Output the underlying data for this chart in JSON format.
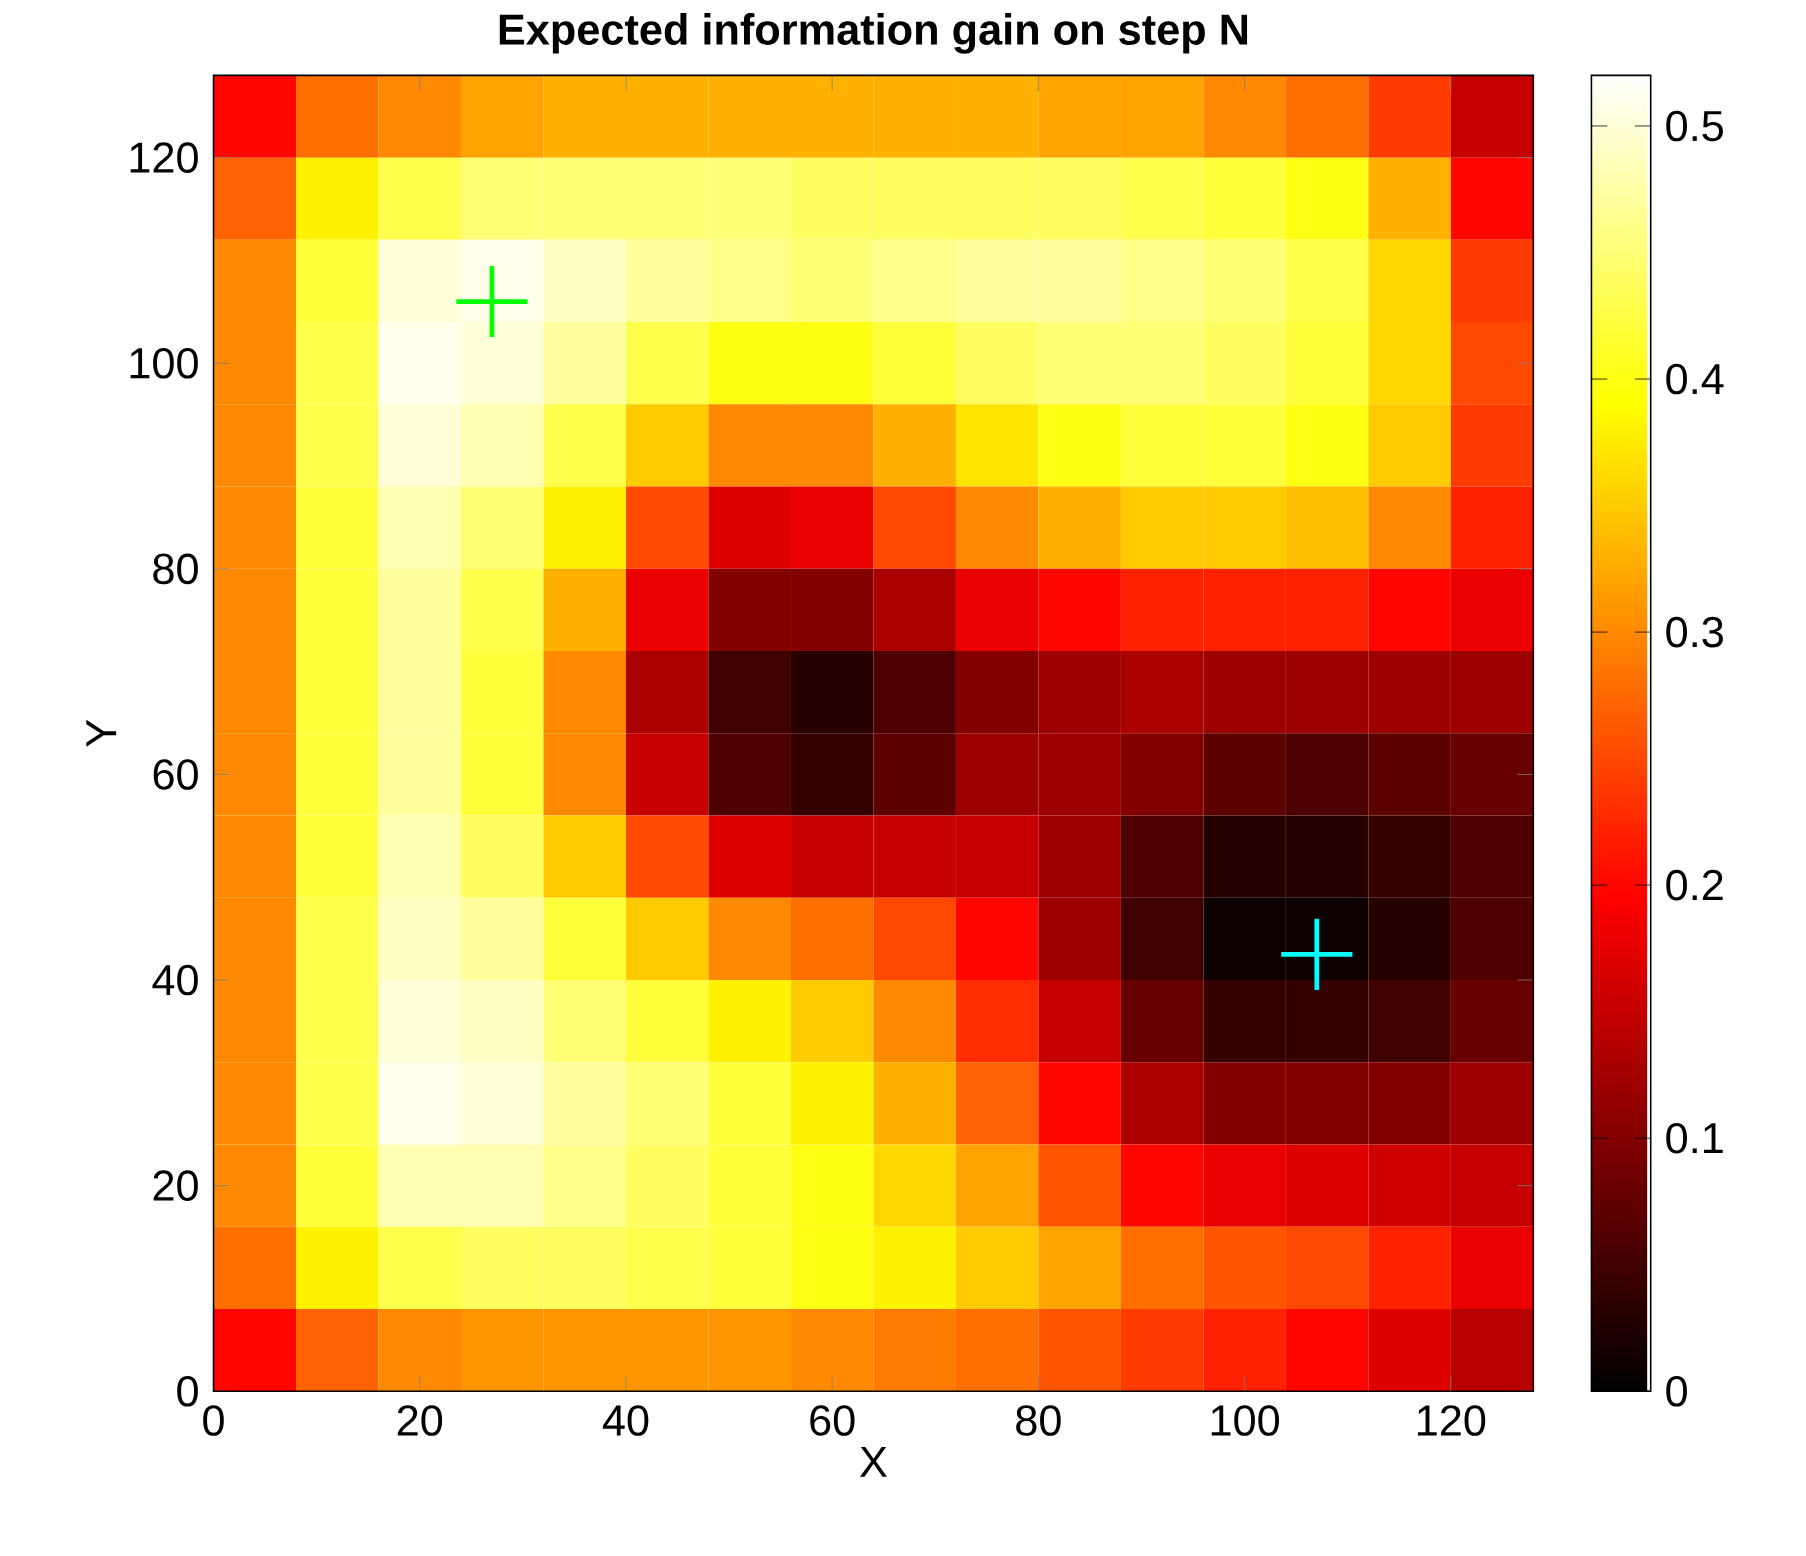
{
  "chart_data": {
    "type": "heatmap",
    "title": "Expected information gain on step N",
    "xlabel": "X",
    "ylabel": "Y",
    "xlim": [
      0,
      128
    ],
    "ylim": [
      0,
      128
    ],
    "xticks": [
      0,
      20,
      40,
      60,
      80,
      100,
      120
    ],
    "yticks": [
      0,
      20,
      40,
      60,
      80,
      100,
      120
    ],
    "clim": [
      0,
      0.52
    ],
    "cticks": [
      0,
      0.1,
      0.2,
      0.3,
      0.4,
      0.5
    ],
    "marker": "cross",
    "cells": [
      [
        0.2,
        0.28,
        0.3,
        0.32,
        0.33,
        0.33,
        0.33,
        0.33,
        0.33,
        0.33,
        0.32,
        0.32,
        0.3,
        0.28,
        0.24,
        0.15
      ],
      [
        0.27,
        0.38,
        0.43,
        0.45,
        0.45,
        0.45,
        0.45,
        0.44,
        0.44,
        0.44,
        0.44,
        0.43,
        0.42,
        0.4,
        0.33,
        0.2
      ],
      [
        0.3,
        0.42,
        0.5,
        0.51,
        0.49,
        0.47,
        0.46,
        0.45,
        0.46,
        0.47,
        0.47,
        0.46,
        0.45,
        0.43,
        0.36,
        0.24
      ],
      [
        0.3,
        0.43,
        0.51,
        0.5,
        0.47,
        0.43,
        0.4,
        0.4,
        0.42,
        0.44,
        0.45,
        0.45,
        0.44,
        0.42,
        0.36,
        0.25
      ],
      [
        0.3,
        0.43,
        0.5,
        0.48,
        0.43,
        0.35,
        0.3,
        0.3,
        0.33,
        0.37,
        0.4,
        0.42,
        0.42,
        0.4,
        0.35,
        0.24
      ],
      [
        0.3,
        0.42,
        0.48,
        0.45,
        0.38,
        0.25,
        0.17,
        0.18,
        0.25,
        0.3,
        0.33,
        0.35,
        0.35,
        0.34,
        0.3,
        0.22
      ],
      [
        0.3,
        0.42,
        0.47,
        0.43,
        0.33,
        0.18,
        0.1,
        0.1,
        0.13,
        0.18,
        0.2,
        0.22,
        0.22,
        0.22,
        0.2,
        0.18
      ],
      [
        0.3,
        0.42,
        0.47,
        0.42,
        0.3,
        0.13,
        0.05,
        0.03,
        0.06,
        0.1,
        0.12,
        0.13,
        0.12,
        0.12,
        0.12,
        0.12
      ],
      [
        0.3,
        0.42,
        0.47,
        0.42,
        0.3,
        0.15,
        0.06,
        0.04,
        0.07,
        0.12,
        0.12,
        0.1,
        0.07,
        0.06,
        0.07,
        0.08
      ],
      [
        0.3,
        0.42,
        0.48,
        0.44,
        0.35,
        0.25,
        0.17,
        0.15,
        0.15,
        0.15,
        0.12,
        0.06,
        0.03,
        0.03,
        0.04,
        0.06
      ],
      [
        0.3,
        0.43,
        0.49,
        0.47,
        0.42,
        0.35,
        0.3,
        0.28,
        0.25,
        0.2,
        0.12,
        0.05,
        0.01,
        0.01,
        0.03,
        0.06
      ],
      [
        0.3,
        0.43,
        0.5,
        0.49,
        0.45,
        0.42,
        0.38,
        0.35,
        0.3,
        0.23,
        0.15,
        0.08,
        0.04,
        0.04,
        0.05,
        0.08
      ],
      [
        0.3,
        0.43,
        0.51,
        0.5,
        0.47,
        0.45,
        0.42,
        0.38,
        0.33,
        0.27,
        0.2,
        0.13,
        0.1,
        0.1,
        0.1,
        0.12
      ],
      [
        0.3,
        0.42,
        0.48,
        0.48,
        0.46,
        0.44,
        0.42,
        0.4,
        0.36,
        0.32,
        0.26,
        0.2,
        0.18,
        0.17,
        0.16,
        0.15
      ],
      [
        0.28,
        0.38,
        0.43,
        0.44,
        0.44,
        0.43,
        0.42,
        0.4,
        0.38,
        0.35,
        0.32,
        0.28,
        0.26,
        0.25,
        0.22,
        0.18
      ],
      [
        0.2,
        0.27,
        0.3,
        0.31,
        0.31,
        0.31,
        0.31,
        0.3,
        0.29,
        0.28,
        0.26,
        0.24,
        0.22,
        0.2,
        0.17,
        0.14
      ]
    ],
    "series": [
      {
        "type": "scatter",
        "x": [
          27
        ],
        "values": [
          106
        ],
        "color": "#00ff00"
      },
      {
        "type": "scatter",
        "x": [
          107
        ],
        "values": [
          42.5
        ],
        "color": "#00ffff"
      }
    ]
  }
}
